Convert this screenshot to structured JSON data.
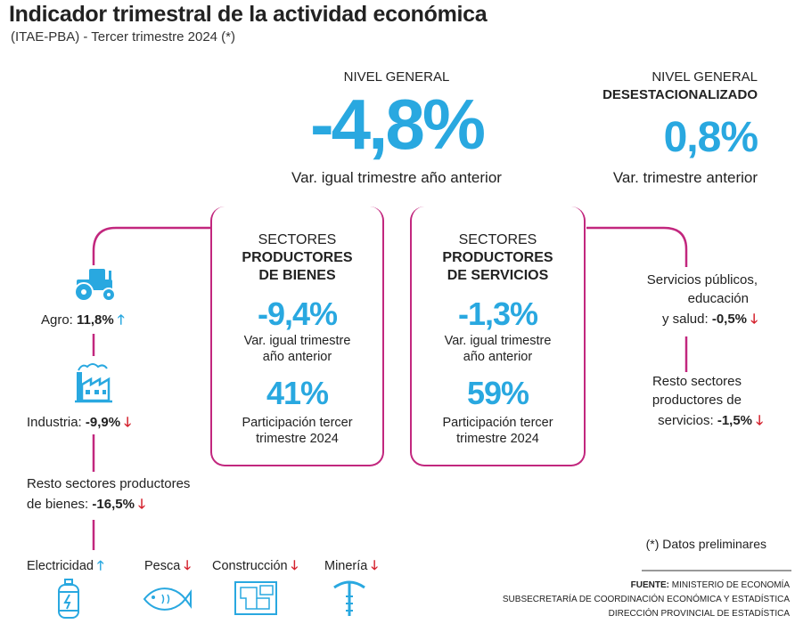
{
  "header": {
    "title": "Indicador trimestral de la actividad económica",
    "subtitle": "(ITAE-PBA) - Tercer trimestre 2024 (*)"
  },
  "nivel_general": {
    "label": "NIVEL GENERAL",
    "value": "-4,8%",
    "caption": "Var. igual trimestre año anterior"
  },
  "desestacionalizado": {
    "label_line1": "NIVEL GENERAL",
    "label_line2": "DESESTACIONALIZADO",
    "value": "0,8%",
    "caption": "Var. trimestre anterior"
  },
  "bienes": {
    "head1": "SECTORES",
    "head2": "PRODUCTORES",
    "head3": "DE BIENES",
    "var_value": "-9,4%",
    "var_caption1": "Var. igual trimestre",
    "var_caption2": "año anterior",
    "part_value": "41%",
    "part_caption1": "Participación tercer",
    "part_caption2": "trimestre 2024"
  },
  "servicios": {
    "head1": "SECTORES",
    "head2": "PRODUCTORES",
    "head3": "DE SERVICIOS",
    "var_value": "-1,3%",
    "var_caption1": "Var. igual trimestre",
    "var_caption2": "año anterior",
    "part_value": "59%",
    "part_caption1": "Participación tercer",
    "part_caption2": "trimestre 2024"
  },
  "left_items": {
    "agro_label": "Agro:",
    "agro_value": "11,8%",
    "industria_label": "Industria:",
    "industria_value": "-9,9%",
    "resto_line1": "Resto sectores productores",
    "resto_line2": "de bienes:",
    "resto_value": "-16,5%"
  },
  "bottom_items": {
    "electricidad": "Electricidad",
    "pesca": "Pesca",
    "construccion": "Construcción",
    "mineria": "Minería"
  },
  "right_items": {
    "servicios_line1": "Servicios públicos,",
    "servicios_line2": "educación",
    "servicios_line3": "y salud:",
    "servicios_value": "-0,5%",
    "resto_line1": "Resto sectores",
    "resto_line2": "productores de",
    "resto_line3": "servicios:",
    "resto_value": "-1,5%"
  },
  "footnote": "(*) Datos preliminares",
  "source": {
    "line1_bold": "FUENTE:",
    "line1_rest": "MINISTERIO DE ECONOMÍA",
    "line2": "SUBSECRETARÍA DE COORDINACIÓN ECONÓMICA Y ESTADÍSTICA",
    "line3": "DIRECCIÓN PROVINCIAL DE ESTADÍSTICA"
  },
  "colors": {
    "accent_blue": "#29a8e0",
    "magenta": "#c2277e",
    "down_red": "#d4202c"
  },
  "arrows": {
    "up": "🡑",
    "down": "🡓"
  }
}
